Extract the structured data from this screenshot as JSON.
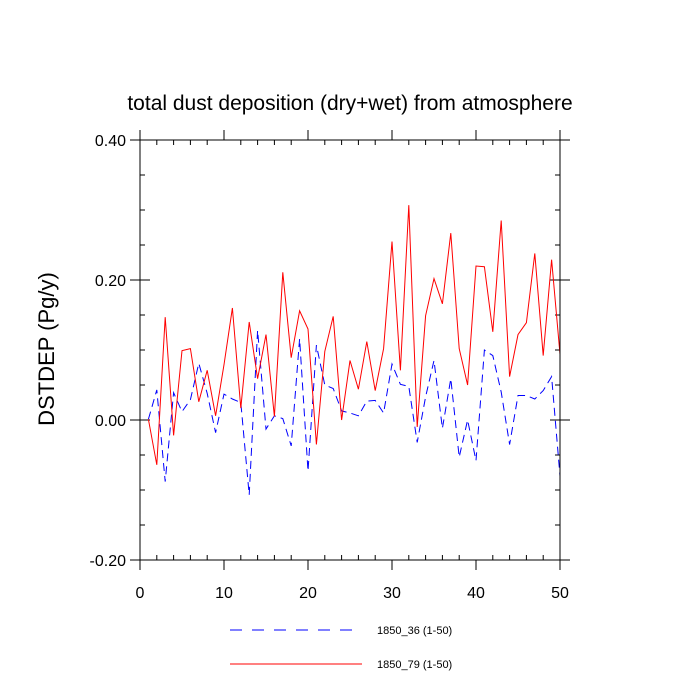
{
  "chart_data": {
    "type": "line",
    "title": "total dust deposition (dry+wet) from atmosphere",
    "ylabel": "DSTDEP  (Pg/y)",
    "xlabel": "",
    "xlim": [
      0,
      50
    ],
    "ylim": [
      -0.2,
      0.4
    ],
    "xticks": [
      0,
      10,
      20,
      30,
      40,
      50
    ],
    "xtick_labels": [
      "0",
      "10",
      "20",
      "30",
      "40",
      "50"
    ],
    "yticks": [
      -0.2,
      0.0,
      0.2,
      0.4
    ],
    "ytick_labels": [
      "-0.20",
      "0.00",
      "0.20",
      "0.40"
    ],
    "x": [
      1,
      2,
      3,
      4,
      5,
      6,
      7,
      8,
      9,
      10,
      11,
      12,
      13,
      14,
      15,
      16,
      17,
      18,
      19,
      20,
      21,
      22,
      23,
      24,
      25,
      26,
      27,
      28,
      29,
      30,
      31,
      32,
      33,
      34,
      35,
      36,
      37,
      38,
      39,
      40,
      41,
      42,
      43,
      44,
      45,
      46,
      47,
      48,
      49,
      50
    ],
    "series": [
      {
        "name": "1850_36 (1-50)",
        "color": "#0000ff",
        "style": "dashed",
        "values": [
          0.001,
          0.043,
          -0.088,
          0.039,
          0.012,
          0.029,
          0.081,
          0.038,
          -0.018,
          0.037,
          0.03,
          0.025,
          -0.107,
          0.128,
          -0.013,
          0.006,
          0.002,
          -0.037,
          0.116,
          -0.073,
          0.107,
          0.05,
          0.045,
          0.013,
          0.01,
          0.006,
          0.027,
          0.028,
          0.01,
          0.08,
          0.051,
          0.048,
          -0.032,
          0.033,
          0.085,
          -0.012,
          0.059,
          -0.053,
          0.0,
          -0.058,
          0.1,
          0.092,
          0.04,
          -0.035,
          0.035,
          0.035,
          0.03,
          0.042,
          0.062,
          -0.08
        ]
      },
      {
        "name": "1850_79 (1-50)",
        "color": "#ff0000",
        "style": "solid",
        "values": [
          0.001,
          -0.064,
          0.147,
          -0.022,
          0.099,
          0.102,
          0.026,
          0.071,
          0.006,
          0.079,
          0.16,
          0.017,
          0.14,
          0.059,
          0.122,
          0.005,
          0.211,
          0.089,
          0.156,
          0.13,
          -0.035,
          0.098,
          0.148,
          0.0,
          0.085,
          0.044,
          0.112,
          0.042,
          0.102,
          0.255,
          0.071,
          0.307,
          -0.01,
          0.149,
          0.202,
          0.166,
          0.267,
          0.102,
          0.05,
          0.22,
          0.219,
          0.126,
          0.285,
          0.062,
          0.122,
          0.139,
          0.238,
          0.092,
          0.229,
          0.094
        ]
      }
    ],
    "legend": "bottom-center"
  }
}
